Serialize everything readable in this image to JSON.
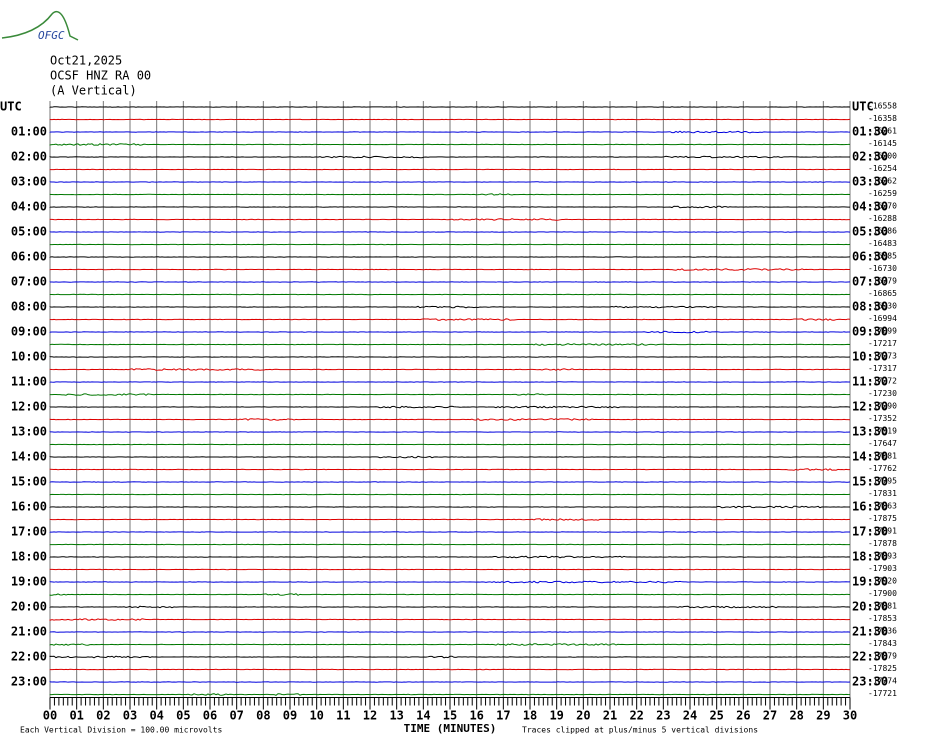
{
  "header": {
    "logo": "OFGC",
    "date": "Oct21,2025",
    "station": "OCSF HNZ RA 00",
    "component": "(A Vertical)"
  },
  "left_labels": [
    "UTC",
    "01:00",
    "02:00",
    "03:00",
    "04:00",
    "05:00",
    "06:00",
    "07:00",
    "08:00",
    "09:00",
    "10:00",
    "11:00",
    "12:00",
    "13:00",
    "14:00",
    "15:00",
    "16:00",
    "17:00",
    "18:00",
    "19:00",
    "20:00",
    "21:00",
    "22:00",
    "23:00"
  ],
  "right_labels": [
    "UTC",
    "01:30",
    "02:30",
    "03:30",
    "04:30",
    "05:30",
    "06:30",
    "07:30",
    "08:30",
    "09:30",
    "10:30",
    "11:30",
    "12:30",
    "13:30",
    "14:30",
    "15:30",
    "16:30",
    "17:30",
    "18:30",
    "19:30",
    "20:30",
    "21:30",
    "22:30",
    "23:30"
  ],
  "offsets": [
    -16558,
    -16358,
    -16261,
    -16145,
    -16200,
    -16254,
    -16262,
    -16259,
    -16270,
    -16288,
    -16386,
    -16483,
    -16585,
    -16730,
    -16779,
    -16865,
    -16930,
    -16994,
    -17099,
    -17217,
    -17273,
    -17317,
    -17272,
    -17230,
    -17290,
    -17352,
    -17519,
    -17647,
    -17681,
    -17762,
    -17795,
    -17831,
    -17863,
    -17875,
    -17891,
    -17878,
    -17893,
    -17903,
    -17920,
    -17900,
    -17881,
    -17853,
    -17836,
    -17843,
    -17879,
    -17825,
    -17774,
    -17721
  ],
  "x_labels": [
    "00",
    "01",
    "02",
    "03",
    "04",
    "05",
    "06",
    "07",
    "08",
    "09",
    "10",
    "11",
    "12",
    "13",
    "14",
    "15",
    "16",
    "17",
    "18",
    "19",
    "20",
    "21",
    "22",
    "23",
    "24",
    "25",
    "26",
    "27",
    "28",
    "29",
    "30"
  ],
  "footer": {
    "division": "Each Vertical Division =  100.00 microvolts",
    "axis_title": "TIME (MINUTES)",
    "clipped": "Traces clipped at plus/minus 5 vertical divisions"
  }
}
